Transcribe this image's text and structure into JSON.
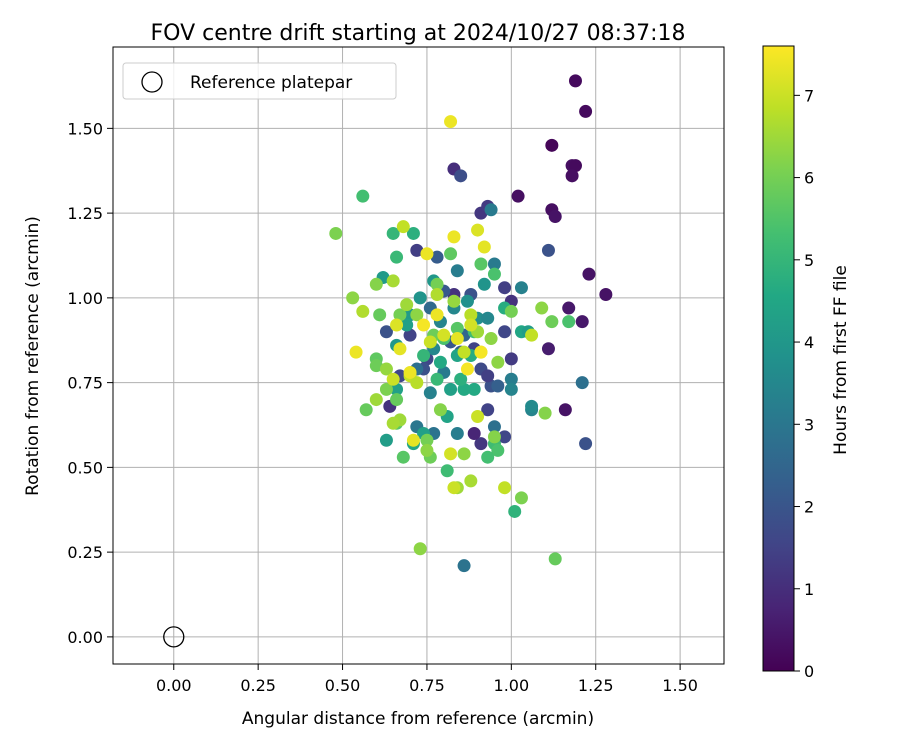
{
  "chart_data": {
    "type": "scatter",
    "title": "FOV centre drift starting at 2024/10/27 08:37:18",
    "xlabel": "Angular distance from reference (arcmin)",
    "ylabel": "Rotation from reference (arcmin)",
    "xlim": [
      -0.18,
      1.63
    ],
    "ylim": [
      -0.08,
      1.74
    ],
    "xticks": [
      "0.00",
      "0.25",
      "0.50",
      "0.75",
      "1.00",
      "1.25",
      "1.50"
    ],
    "xtick_values": [
      0,
      0.25,
      0.5,
      0.75,
      1.0,
      1.25,
      1.5
    ],
    "yticks": [
      "0.00",
      "0.25",
      "0.50",
      "0.75",
      "1.00",
      "1.25",
      "1.50"
    ],
    "ytick_values": [
      0,
      0.25,
      0.5,
      0.75,
      1.0,
      1.25,
      1.5
    ],
    "grid": true,
    "legend": {
      "position": "top-left",
      "entries": [
        "Reference platepar"
      ]
    },
    "reference_point": {
      "x": 0,
      "y": 0,
      "label": "Reference platepar"
    },
    "colorbar": {
      "label": "Hours from first FF file",
      "colormap": "viridis",
      "range": [
        0,
        7.6
      ],
      "ticks": [
        "0",
        "1",
        "2",
        "3",
        "4",
        "5",
        "6",
        "7"
      ],
      "tick_values": [
        0,
        1,
        2,
        3,
        4,
        5,
        6,
        7
      ]
    },
    "points": [
      [
        1.19,
        1.64,
        0.2
      ],
      [
        1.22,
        1.55,
        0.2
      ],
      [
        1.12,
        1.45,
        0.1
      ],
      [
        1.18,
        1.39,
        0.3
      ],
      [
        1.19,
        1.39,
        0.2
      ],
      [
        1.18,
        1.36,
        0.3
      ],
      [
        1.02,
        1.3,
        0.3
      ],
      [
        1.12,
        1.26,
        0.3
      ],
      [
        1.13,
        1.24,
        0.4
      ],
      [
        1.23,
        1.07,
        0.4
      ],
      [
        1.28,
        1.01,
        0.4
      ],
      [
        1.17,
        0.97,
        0.5
      ],
      [
        1.21,
        0.93,
        0.5
      ],
      [
        1.11,
        0.85,
        0.6
      ],
      [
        1.16,
        0.67,
        0.4
      ],
      [
        0.83,
        1.38,
        1.0
      ],
      [
        0.85,
        1.36,
        1.8
      ],
      [
        0.91,
        1.25,
        1.2
      ],
      [
        0.93,
        1.27,
        1.3
      ],
      [
        1.11,
        1.14,
        1.9
      ],
      [
        1.0,
        0.99,
        1.1
      ],
      [
        0.98,
        1.03,
        1.4
      ],
      [
        0.98,
        0.9,
        1.6
      ],
      [
        1.0,
        0.82,
        1.3
      ],
      [
        1.22,
        0.57,
        1.9
      ],
      [
        0.91,
        0.57,
        1.2
      ],
      [
        0.98,
        0.59,
        1.6
      ],
      [
        0.93,
        0.67,
        1.5
      ],
      [
        0.95,
        0.62,
        2.8
      ],
      [
        0.89,
        0.6,
        0.8
      ],
      [
        0.91,
        0.79,
        1.7
      ],
      [
        0.94,
        0.74,
        1.9
      ],
      [
        0.96,
        0.74,
        2.3
      ],
      [
        0.93,
        0.77,
        1.4
      ],
      [
        0.89,
        0.85,
        1.5
      ],
      [
        0.85,
        0.84,
        2.1
      ],
      [
        0.82,
        0.87,
        2.0
      ],
      [
        0.86,
        0.89,
        2.5
      ],
      [
        0.88,
        1.01,
        1.9
      ],
      [
        0.83,
        1.01,
        1.1
      ],
      [
        0.8,
        1.02,
        2.1
      ],
      [
        0.76,
        0.97,
        2.6
      ],
      [
        0.75,
        0.82,
        1.6
      ],
      [
        0.74,
        0.79,
        1.9
      ],
      [
        0.72,
        0.79,
        2.8
      ],
      [
        0.7,
        0.89,
        1.5
      ],
      [
        0.63,
        0.9,
        1.9
      ],
      [
        0.67,
        0.77,
        1.6
      ],
      [
        0.64,
        0.68,
        1.1
      ],
      [
        0.72,
        1.14,
        1.4
      ],
      [
        0.78,
        1.12,
        2.2
      ],
      [
        0.94,
        1.26,
        3.1
      ],
      [
        1.03,
        1.03,
        3.3
      ],
      [
        1.0,
        0.76,
        3.2
      ],
      [
        1.0,
        0.73,
        3.4
      ],
      [
        1.06,
        0.67,
        3.4
      ],
      [
        1.06,
        0.68,
        3.6
      ],
      [
        1.21,
        0.75,
        2.8
      ],
      [
        0.86,
        0.21,
        2.9
      ],
      [
        0.84,
        0.6,
        3.2
      ],
      [
        0.8,
        0.78,
        3.1
      ],
      [
        0.76,
        0.72,
        3.3
      ],
      [
        0.72,
        0.62,
        3.0
      ],
      [
        0.77,
        0.6,
        2.9
      ],
      [
        0.77,
        0.85,
        3.5
      ],
      [
        0.79,
        0.93,
        3.4
      ],
      [
        0.83,
        0.97,
        3.5
      ],
      [
        0.87,
        0.99,
        3.8
      ],
      [
        0.9,
        0.94,
        3.7
      ],
      [
        0.93,
        0.94,
        3.5
      ],
      [
        0.92,
        1.04,
        3.9
      ],
      [
        0.95,
        1.1,
        3.1
      ],
      [
        0.84,
        1.08,
        3.2
      ],
      [
        0.77,
        1.05,
        4.0
      ],
      [
        0.73,
        1.0,
        3.9
      ],
      [
        0.7,
        0.95,
        4.1
      ],
      [
        0.69,
        0.92,
        4.3
      ],
      [
        0.66,
        0.86,
        4.0
      ],
      [
        0.62,
        1.06,
        4.1
      ],
      [
        0.63,
        0.58,
        4.2
      ],
      [
        0.71,
        0.57,
        4.5
      ],
      [
        0.74,
        0.6,
        4.3
      ],
      [
        0.81,
        0.65,
        4.4
      ],
      [
        0.86,
        0.73,
        4.6
      ],
      [
        0.85,
        0.76,
        4.8
      ],
      [
        0.82,
        0.73,
        4.3
      ],
      [
        0.79,
        0.81,
        4.6
      ],
      [
        0.84,
        0.83,
        4.4
      ],
      [
        0.88,
        0.83,
        4.7
      ],
      [
        0.89,
        0.73,
        4.6
      ],
      [
        1.01,
        0.37,
        4.9
      ],
      [
        0.95,
        0.57,
        5.2
      ],
      [
        0.96,
        0.55,
        5.4
      ],
      [
        0.93,
        0.53,
        5.3
      ],
      [
        1.03,
        0.9,
        4.5
      ],
      [
        0.98,
        0.97,
        4.7
      ],
      [
        1.05,
        0.9,
        4.2
      ],
      [
        0.66,
        1.12,
        5.1
      ],
      [
        0.65,
        1.19,
        5.0
      ],
      [
        0.56,
        1.3,
        5.3
      ],
      [
        0.71,
        1.19,
        4.8
      ],
      [
        0.66,
        0.73,
        4.3
      ],
      [
        0.66,
        0.63,
        5.6
      ],
      [
        0.81,
        0.49,
        5.2
      ],
      [
        0.78,
        0.76,
        5.1
      ],
      [
        0.74,
        0.83,
        5.0
      ],
      [
        0.8,
        0.88,
        5.4
      ],
      [
        0.84,
        0.91,
        5.6
      ],
      [
        0.89,
        0.9,
        5.2
      ],
      [
        0.91,
        1.1,
        5.6
      ],
      [
        0.95,
        1.07,
        5.4
      ],
      [
        0.82,
        1.13,
        5.7
      ],
      [
        0.77,
        0.89,
        5.9
      ],
      [
        0.78,
        1.04,
        6.0
      ],
      [
        0.67,
        0.95,
        6.0
      ],
      [
        0.61,
        0.95,
        5.8
      ],
      [
        0.6,
        0.82,
        5.7
      ],
      [
        0.6,
        0.8,
        5.9
      ],
      [
        0.63,
        0.73,
        6.1
      ],
      [
        0.57,
        0.67,
        5.8
      ],
      [
        0.66,
        0.7,
        5.8
      ],
      [
        0.68,
        0.53,
        5.6
      ],
      [
        0.76,
        0.53,
        5.9
      ],
      [
        0.75,
        0.58,
        6.0
      ],
      [
        0.75,
        0.55,
        6.3
      ],
      [
        0.79,
        0.67,
        6.2
      ],
      [
        0.86,
        0.54,
        6.3
      ],
      [
        0.95,
        0.59,
        6.2
      ],
      [
        0.96,
        0.81,
        6.3
      ],
      [
        1.12,
        0.93,
        5.9
      ],
      [
        1.17,
        0.93,
        5.4
      ],
      [
        1.09,
        0.97,
        6.3
      ],
      [
        1.0,
        0.96,
        6.0
      ],
      [
        0.94,
        0.88,
        6.3
      ],
      [
        1.13,
        0.23,
        5.8
      ],
      [
        1.03,
        0.41,
        6.1
      ],
      [
        1.1,
        0.66,
        6.2
      ],
      [
        0.73,
        0.26,
        6.3
      ],
      [
        0.84,
        0.44,
        6.5
      ],
      [
        0.88,
        0.46,
        6.6
      ],
      [
        0.48,
        1.19,
        6.1
      ],
      [
        0.53,
        1.0,
        6.3
      ],
      [
        0.6,
        1.04,
        6.2
      ],
      [
        0.65,
        1.05,
        6.6
      ],
      [
        0.69,
        0.98,
        6.5
      ],
      [
        0.72,
        0.95,
        6.3
      ],
      [
        0.78,
        1.01,
        6.7
      ],
      [
        0.83,
        0.99,
        6.4
      ],
      [
        0.88,
        0.95,
        6.8
      ],
      [
        0.9,
        0.9,
        6.5
      ],
      [
        0.67,
        0.64,
        6.5
      ],
      [
        0.65,
        0.63,
        6.6
      ],
      [
        0.6,
        0.7,
        6.5
      ],
      [
        0.63,
        0.79,
        6.4
      ],
      [
        0.56,
        0.96,
        6.7
      ],
      [
        0.65,
        0.76,
        7.0
      ],
      [
        0.7,
        0.77,
        6.9
      ],
      [
        0.72,
        0.75,
        6.8
      ],
      [
        0.76,
        0.87,
        7.0
      ],
      [
        0.8,
        0.89,
        7.1
      ],
      [
        0.86,
        0.84,
        6.9
      ],
      [
        0.91,
        0.84,
        7.2
      ],
      [
        0.88,
        0.92,
        7.1
      ],
      [
        0.68,
        1.21,
        6.9
      ],
      [
        0.83,
        0.44,
        7.0
      ],
      [
        0.9,
        0.65,
        7.0
      ],
      [
        0.98,
        0.44,
        6.9
      ],
      [
        1.06,
        0.89,
        6.9
      ],
      [
        0.71,
        0.58,
        7.3
      ],
      [
        0.82,
        0.54,
        7.1
      ],
      [
        0.54,
        0.84,
        7.4
      ],
      [
        0.66,
        0.92,
        7.2
      ],
      [
        0.67,
        0.85,
        7.3
      ],
      [
        0.7,
        0.78,
        7.4
      ],
      [
        0.74,
        0.92,
        7.5
      ],
      [
        0.78,
        0.95,
        7.4
      ],
      [
        0.84,
        0.88,
        7.3
      ],
      [
        0.87,
        0.79,
        7.5
      ],
      [
        0.91,
        0.84,
        7.5
      ],
      [
        0.75,
        1.13,
        7.4
      ],
      [
        0.83,
        1.18,
        7.4
      ],
      [
        0.9,
        1.2,
        7.2
      ],
      [
        0.92,
        1.15,
        7.3
      ],
      [
        0.82,
        1.52,
        7.4
      ]
    ]
  }
}
